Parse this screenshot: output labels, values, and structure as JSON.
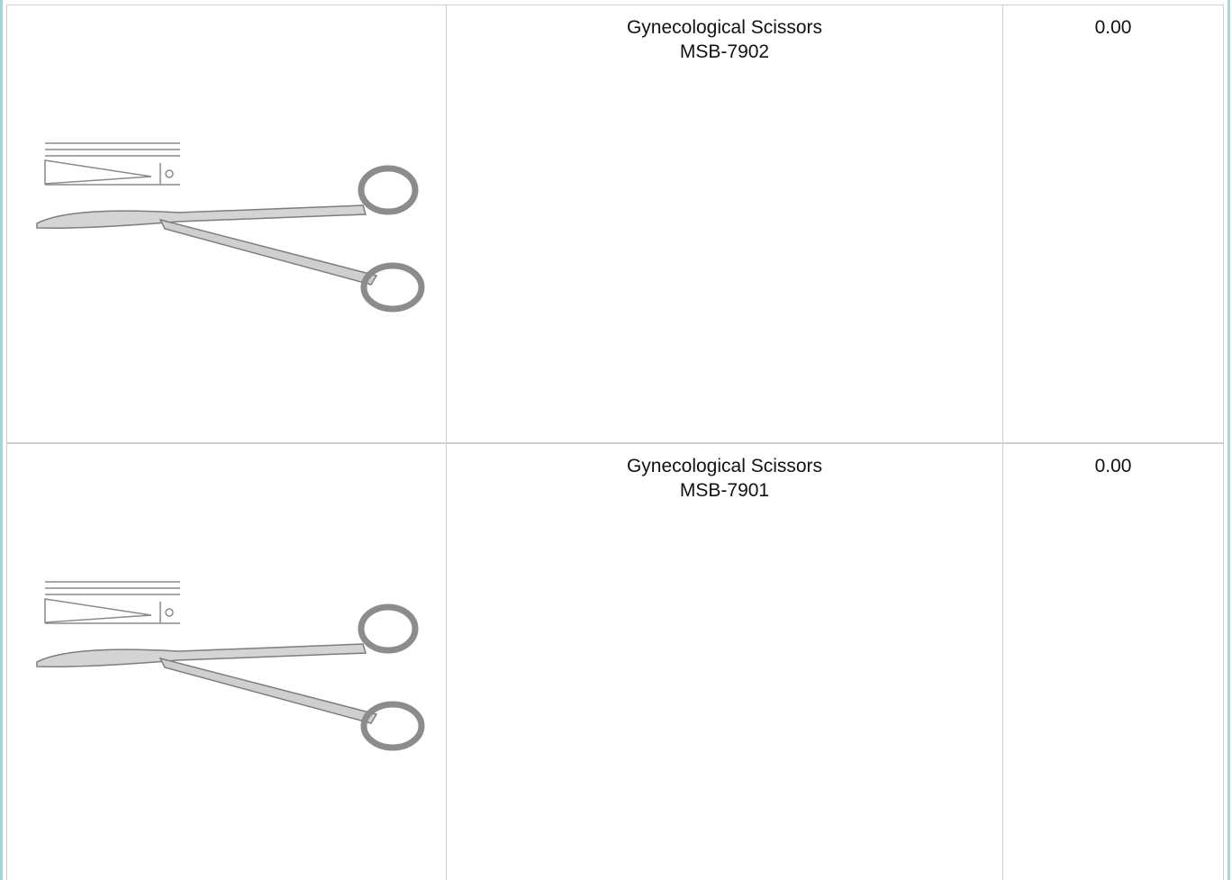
{
  "table": {
    "rows": [
      {
        "name": "Gynecological Scissors",
        "code": "MSB-7902",
        "price": "0.00"
      },
      {
        "name": "Gynecological Scissors",
        "code": "MSB-7901",
        "price": "0.00"
      }
    ]
  }
}
